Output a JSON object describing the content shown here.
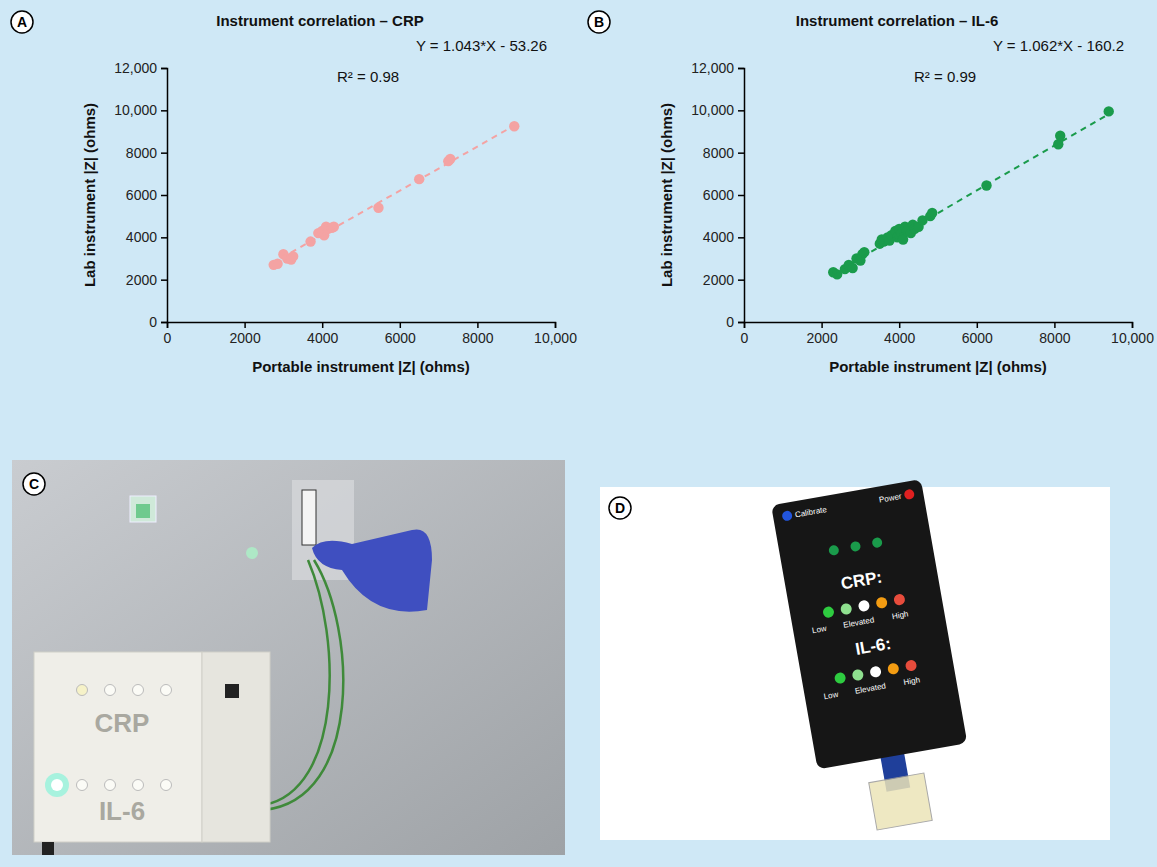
{
  "chart_data": [
    {
      "type": "scatter",
      "panel_label": "A",
      "title": "Instrument correlation – CRP",
      "x_label": "Portable instrument |Z| (ohms)",
      "y_label": "Lab instrument |Z| (ohms)",
      "annotations": [
        "Y = 1.043*X - 53.26",
        "R² = 0.98"
      ],
      "xlim": [
        0,
        10000
      ],
      "xticks": [
        0,
        2000,
        4000,
        6000,
        8000,
        {
          "value": 10000,
          "label": "10,000"
        }
      ],
      "ylim": [
        0,
        12000
      ],
      "yticks": [
        0,
        2000,
        4000,
        6000,
        8000,
        {
          "value": 10000,
          "label": "10,000"
        },
        {
          "value": 12000,
          "label": "12,000"
        }
      ],
      "grid": false,
      "series": [
        {
          "type": "scatter",
          "marker": "circle",
          "color": "#f4a3a3",
          "x": [
            2750,
            2850,
            3000,
            3100,
            3200,
            3250,
            3700,
            3900,
            4000,
            4050,
            4100,
            4150,
            4250,
            4300,
            5450,
            6500,
            7250,
            7300,
            8950
          ],
          "values": [
            2700,
            2750,
            3200,
            3000,
            2950,
            3100,
            3800,
            4200,
            4300,
            4100,
            4500,
            4400,
            4450,
            4500,
            5400,
            6750,
            7600,
            7700,
            9250
          ]
        },
        {
          "type": "line",
          "line_style": "dashed",
          "color": "#f4a3a3",
          "x": [
            2700,
            8950
          ],
          "values": [
            2763,
            9281
          ]
        }
      ]
    },
    {
      "type": "scatter",
      "panel_label": "B",
      "title": "Instrument correlation – IL-6",
      "x_label": "Portable instrument |Z| (ohms)",
      "y_label": "Lab instrument |Z| (ohms)",
      "annotations": [
        "Y = 1.062*X - 160.2",
        "R² = 0.99"
      ],
      "xlim": [
        0,
        10000
      ],
      "xticks": [
        0,
        2000,
        4000,
        6000,
        8000,
        {
          "value": 10000,
          "label": "10,000"
        }
      ],
      "ylim": [
        0,
        12000
      ],
      "yticks": [
        0,
        2000,
        4000,
        6000,
        8000,
        {
          "value": 10000,
          "label": "10,000"
        },
        {
          "value": 12000,
          "label": "12,000"
        }
      ],
      "grid": false,
      "series": [
        {
          "type": "scatter",
          "marker": "circle",
          "color": "#1a9b4b",
          "x": [
            2300,
            2400,
            2600,
            2700,
            2800,
            2900,
            3000,
            3050,
            3100,
            3500,
            3550,
            3600,
            3700,
            3750,
            3800,
            3900,
            3950,
            4000,
            4050,
            4100,
            4150,
            4200,
            4300,
            4350,
            4400,
            4500,
            4600,
            4800,
            4850,
            6250,
            8100,
            8150,
            9400
          ],
          "values": [
            2350,
            2250,
            2500,
            2700,
            2550,
            3000,
            2900,
            3200,
            3300,
            3700,
            3900,
            3800,
            4000,
            3850,
            4100,
            4300,
            4000,
            4400,
            4200,
            3900,
            4500,
            4300,
            4200,
            4600,
            4400,
            4500,
            4800,
            5000,
            5150,
            6450,
            8400,
            8800,
            9950
          ]
        },
        {
          "type": "line",
          "line_style": "dashed",
          "color": "#1a9b4b",
          "x": [
            2300,
            9400
          ],
          "values": [
            2283,
            9823
          ]
        }
      ]
    }
  ],
  "panels": [
    {
      "letter": "C",
      "device_labels": [
        "CRP",
        "IL-6"
      ]
    },
    {
      "letter": "D",
      "buttons": [
        "Calibrate",
        "Power"
      ],
      "rows": [
        {
          "label": "CRP:",
          "levels": [
            "Low",
            "Elevated",
            "High"
          ]
        },
        {
          "label": "IL-6:",
          "levels": [
            "Low",
            "Elevated",
            "High"
          ]
        }
      ]
    }
  ]
}
